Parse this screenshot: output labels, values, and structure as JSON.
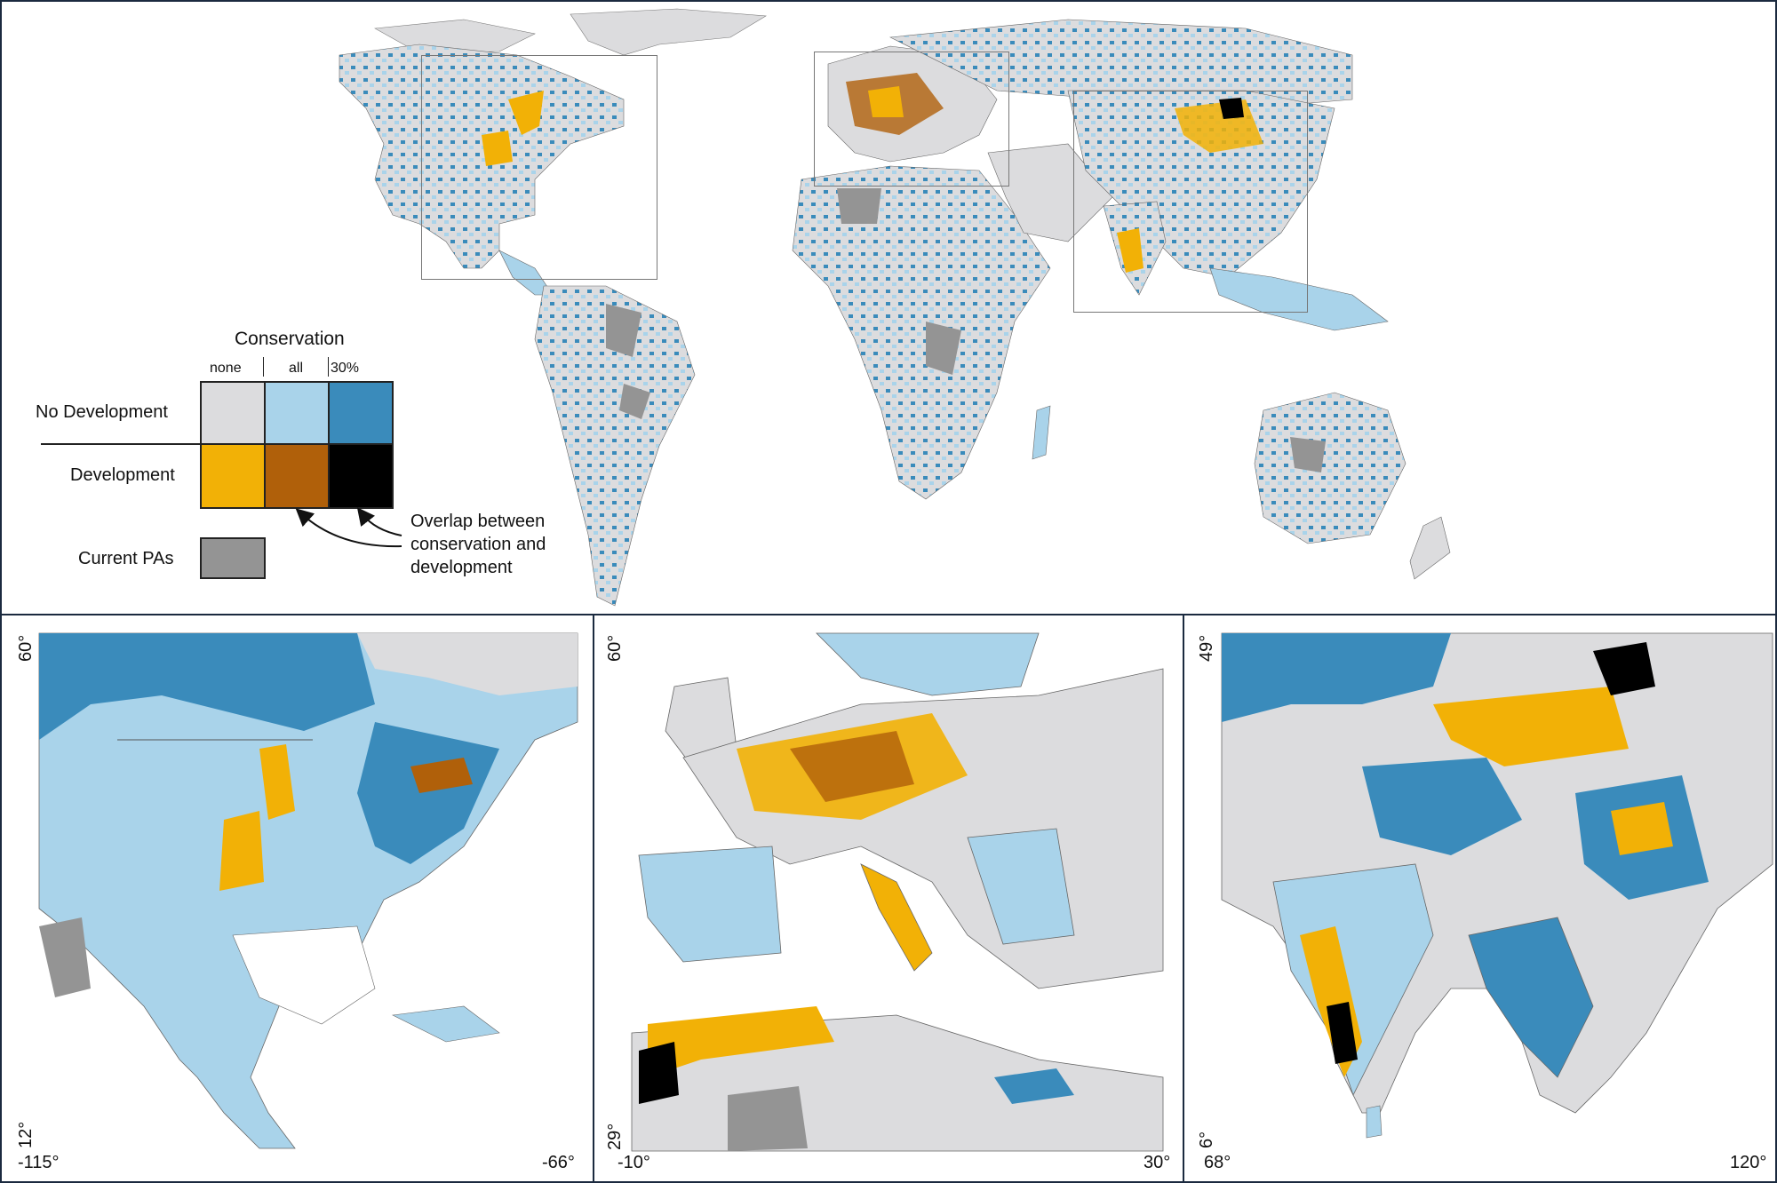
{
  "colors": {
    "none_no_dev": "#dcdcde",
    "all_no_dev": "#a9d3ea",
    "pct30_no_dev": "#3a8bbb",
    "none_dev": "#f2b106",
    "all_dev": "#b0600a",
    "pct30_dev": "#000000",
    "current_pas": "#949494",
    "border": "#1b2a3f"
  },
  "legend": {
    "title": "Conservation",
    "columns": [
      "none",
      "all",
      "30%"
    ],
    "rows": [
      "No Development",
      "Development"
    ],
    "current_pas_label": "Current PAs",
    "overlap_note": [
      "Overlap between",
      "conservation and",
      "development"
    ]
  },
  "insets": {
    "north_america": {
      "lat_top": "60°",
      "lat_bottom": "12°",
      "lon_left": "-115°",
      "lon_right": "-66°"
    },
    "europe": {
      "lat_top": "60°",
      "lat_bottom": "29°",
      "lon_left": "-10°",
      "lon_right": "30°"
    },
    "asia": {
      "lat_top": "49°",
      "lat_bottom": "6°",
      "lon_left": "68°",
      "lon_right": "120°"
    }
  }
}
